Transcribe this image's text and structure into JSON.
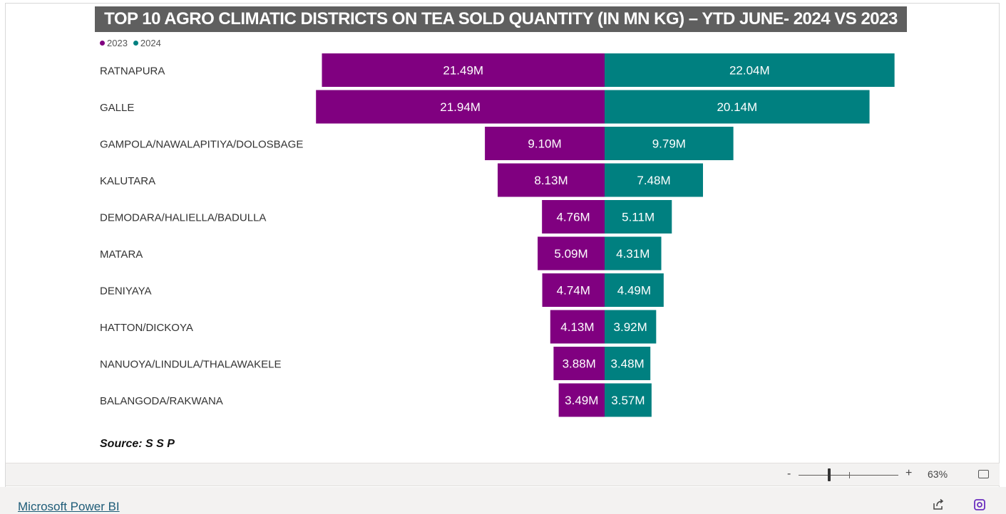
{
  "chart_data": {
    "type": "bar",
    "title": "TOP 10 AGRO CLIMATIC DISTRICTS ON TEA SOLD QUANTITY (IN MN KG) – YTD JUNE- 2024 VS 2023",
    "categories": [
      "RATNAPURA",
      "GALLE",
      "GAMPOLA/NAWALAPITIYA/DOLOSBAGE",
      "KALUTARA",
      "DEMODARA/HALIELLA/BADULLA",
      "MATARA",
      "DENIYAYA",
      "HATTON/DICKOYA",
      "NANUOYA/LINDULA/THALAWAKELE",
      "BALANGODA/RAKWANA"
    ],
    "series": [
      {
        "name": "2023",
        "color": "#800080",
        "values": [
          21.49,
          21.94,
          9.1,
          8.13,
          4.76,
          5.09,
          4.74,
          4.13,
          3.88,
          3.49
        ],
        "labels": [
          "21.49M",
          "21.94M",
          "9.10M",
          "8.13M",
          "4.76M",
          "5.09M",
          "4.74M",
          "4.13M",
          "3.88M",
          "3.49M"
        ]
      },
      {
        "name": "2024",
        "color": "#008080",
        "values": [
          22.04,
          20.14,
          9.79,
          7.48,
          5.11,
          4.31,
          4.49,
          3.92,
          3.48,
          3.57
        ],
        "labels": [
          "22.04M",
          "20.14M",
          "9.79M",
          "7.48M",
          "5.11M",
          "4.31M",
          "4.49M",
          "3.92M",
          "3.48M",
          "3.57M"
        ]
      }
    ],
    "legend_position": "top-left",
    "orientation": "horizontal-mirrored"
  },
  "legend": [
    {
      "label": "2023",
      "color": "#800080"
    },
    {
      "label": "2024",
      "color": "#008080"
    }
  ],
  "source": "Source: S S P",
  "zoom": {
    "minus": "-",
    "plus": "+",
    "percent": "63%",
    "level": 0.63
  },
  "footer": {
    "link": "Microsoft Power BI"
  }
}
